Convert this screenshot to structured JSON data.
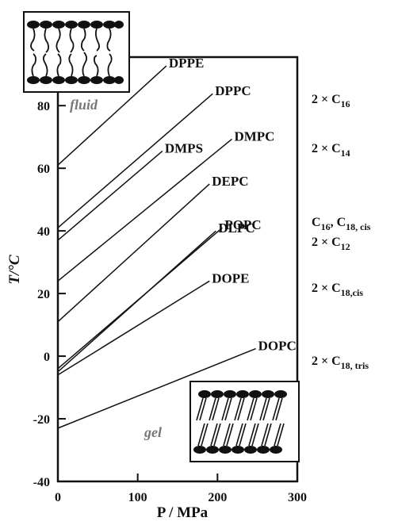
{
  "chart_data": {
    "type": "line",
    "x_label": "P / MPa",
    "y_label": "T/°C",
    "xlim": [
      0,
      300
    ],
    "xticks": [
      0,
      100,
      200,
      300
    ],
    "ylim": [
      -40,
      95.5
    ],
    "yticks": [
      -40,
      -20,
      0,
      20,
      40,
      60,
      80
    ],
    "annotations": [
      "fluid",
      "gel"
    ],
    "series": [
      {
        "name": "DPPE",
        "color": "#111",
        "x": [
          0,
          136
        ],
        "values": [
          61,
          92.7
        ]
      },
      {
        "name": "DPPC",
        "color": "#111",
        "x": [
          0,
          194
        ],
        "values": [
          41,
          83.8
        ],
        "chain": [
          "2 × C",
          "16"
        ]
      },
      {
        "name": "DMPS",
        "color": "#111",
        "x": [
          0,
          131
        ],
        "values": [
          37,
          65.5
        ]
      },
      {
        "name": "DMPC",
        "color": "#111",
        "x": [
          0,
          218
        ],
        "values": [
          24,
          69.3
        ],
        "chain": [
          "2 × C",
          "14"
        ]
      },
      {
        "name": "DEPC",
        "color": "#111",
        "x": [
          0,
          190
        ],
        "values": [
          11,
          55
        ]
      },
      {
        "name": "POPC",
        "color": "#111",
        "x": [
          0,
          206
        ],
        "values": [
          -4,
          41
        ],
        "chain": [
          "C",
          "16",
          ", C",
          "18, cis"
        ]
      },
      {
        "name": "DLPC",
        "color": "#111",
        "x": [
          0,
          198
        ],
        "values": [
          -5,
          40
        ],
        "chain": [
          "2 × C",
          "12"
        ]
      },
      {
        "name": "DOPE",
        "color": "#111",
        "x": [
          0,
          190
        ],
        "values": [
          -6,
          24
        ],
        "chain": [
          "2 × C",
          "18,cis"
        ]
      },
      {
        "name": "DOPC",
        "color": "#111",
        "x": [
          0,
          248
        ],
        "values": [
          -23,
          2.4
        ],
        "chain": [
          "2 × C",
          "18, tris"
        ]
      }
    ]
  }
}
